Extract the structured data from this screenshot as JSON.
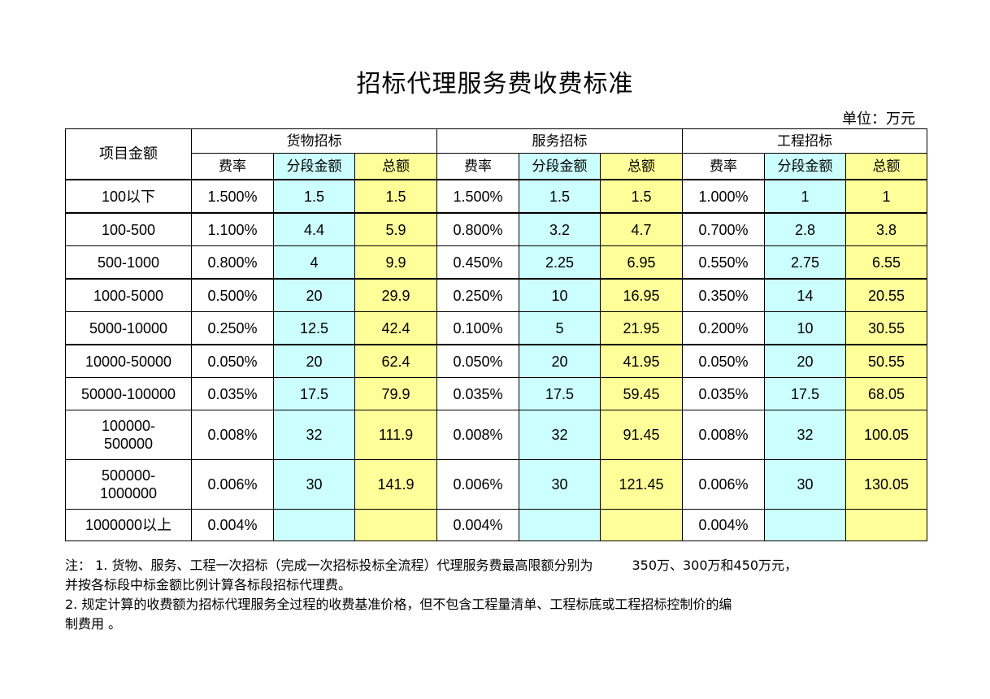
{
  "title": "招标代理服务费收费标准",
  "unit": "单位：万元",
  "header": {
    "amount_label": "项目金额",
    "groups": [
      "货物招标",
      "服务招标",
      "工程招标"
    ],
    "sub": [
      "费率",
      "分段金额",
      "总额"
    ]
  },
  "rows": [
    {
      "range": "100以下",
      "cells": [
        "1.500%",
        "1.5",
        "1.5",
        "1.500%",
        "1.5",
        "1.5",
        "1.000%",
        "1",
        "1"
      ]
    },
    {
      "range": "100-500",
      "cells": [
        "1.100%",
        "4.4",
        "5.9",
        "0.800%",
        "3.2",
        "4.7",
        "0.700%",
        "2.8",
        "3.8"
      ]
    },
    {
      "range": "500-1000",
      "cells": [
        "0.800%",
        "4",
        "9.9",
        "0.450%",
        "2.25",
        "6.95",
        "0.550%",
        "2.75",
        "6.55"
      ]
    },
    {
      "range": "1000-5000",
      "cells": [
        "0.500%",
        "20",
        "29.9",
        "0.250%",
        "10",
        "16.95",
        "0.350%",
        "14",
        "20.55"
      ]
    },
    {
      "range": "5000-10000",
      "cells": [
        "0.250%",
        "12.5",
        "42.4",
        "0.100%",
        "5",
        "21.95",
        "0.200%",
        "10",
        "30.55"
      ]
    },
    {
      "range": "10000-50000",
      "cells": [
        "0.050%",
        "20",
        "62.4",
        "0.050%",
        "20",
        "41.95",
        "0.050%",
        "20",
        "50.55"
      ]
    },
    {
      "range": "50000-100000",
      "cells": [
        "0.035%",
        "17.5",
        "79.9",
        "0.035%",
        "17.5",
        "59.45",
        "0.035%",
        "17.5",
        "68.05"
      ]
    },
    {
      "range_a": "100000-",
      "range_b": "500000",
      "cells": [
        "0.008%",
        "32",
        "111.9",
        "0.008%",
        "32",
        "91.45",
        "0.008%",
        "32",
        "100.05"
      ]
    },
    {
      "range_a": "500000-",
      "range_b": "1000000",
      "cells": [
        "0.006%",
        "30",
        "141.9",
        "0.006%",
        "30",
        "121.45",
        "0.006%",
        "30",
        "130.05"
      ]
    },
    {
      "range": "1000000以上",
      "cells": [
        "0.004%",
        "",
        "",
        "0.004%",
        "",
        "",
        "0.004%",
        "",
        ""
      ]
    }
  ],
  "notes": {
    "line1_a": "注： 1. 货物、服务、工程一次招标（完成一次招标投标全流程）代理服务费最高限额分别为",
    "line1_b": "350万、300万和450万元，",
    "line2": "并按各标段中标金额比例计算各标段招标代理费。",
    "line3": "2. 规定计算的收费额为招标代理服务全过程的收费基准价格，但不包含工程量清单、工程标底或工程招标控制价的编",
    "line4": "制费用 。"
  }
}
